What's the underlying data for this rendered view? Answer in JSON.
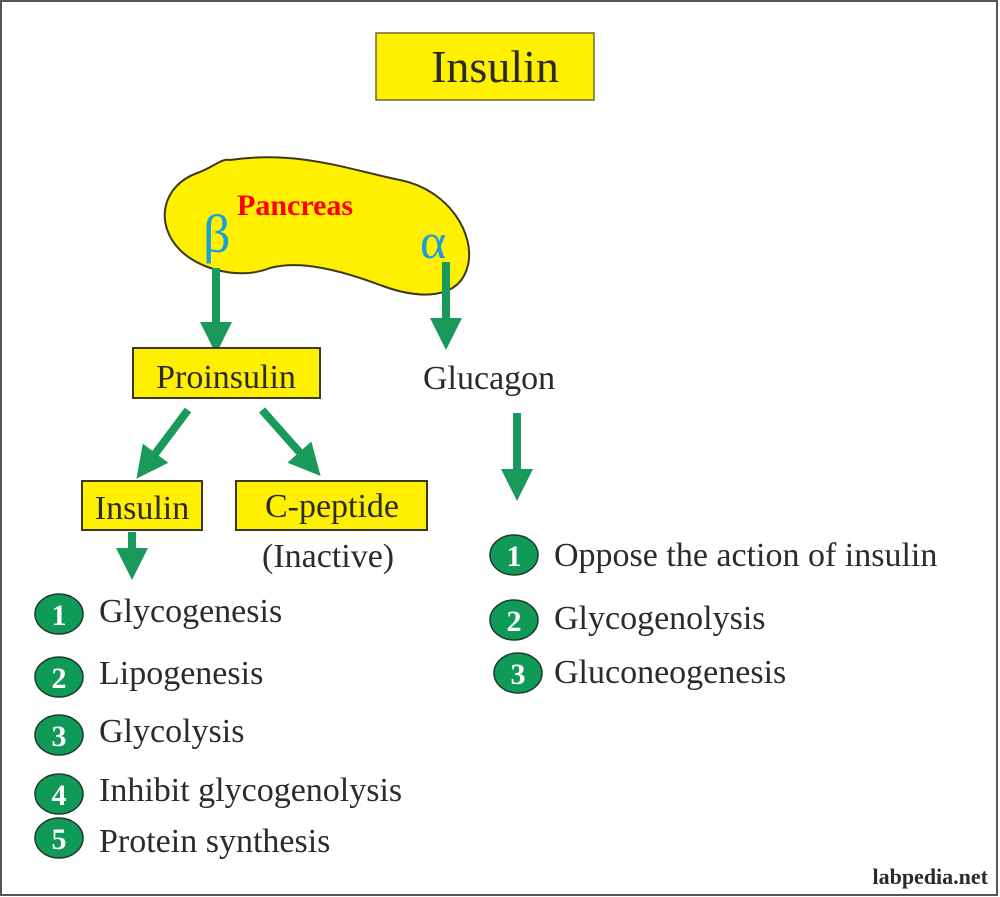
{
  "title": "Insulin",
  "pancreas": {
    "label": "Pancreas",
    "beta": "β",
    "alpha": "α"
  },
  "proinsulin": "Proinsulin",
  "glucagon": "Glucagon",
  "insulin_box": "Insulin",
  "cpeptide": {
    "label": "C-peptide",
    "note": "(Inactive)"
  },
  "insulin_actions": [
    {
      "num": "1",
      "label": "Glycogenesis"
    },
    {
      "num": "2",
      "label": "Lipogenesis"
    },
    {
      "num": "3",
      "label": "Glycolysis"
    },
    {
      "num": "4",
      "label": "Inhibit glycogenolysis"
    },
    {
      "num": "5",
      "label": "Protein synthesis"
    }
  ],
  "glucagon_actions": [
    {
      "num": "1",
      "label": "Oppose the action of insulin"
    },
    {
      "num": "2",
      "label": "Glycogenolysis"
    },
    {
      "num": "3",
      "label": "Gluconeogenesis"
    }
  ],
  "watermark": "labpedia.net",
  "colors": {
    "box_fill": "#ffef00",
    "arrow": "#1a9a5a",
    "badge": "#0f9a57",
    "pancreas_label": "#ff0000",
    "greek": "#1aa0d8"
  }
}
